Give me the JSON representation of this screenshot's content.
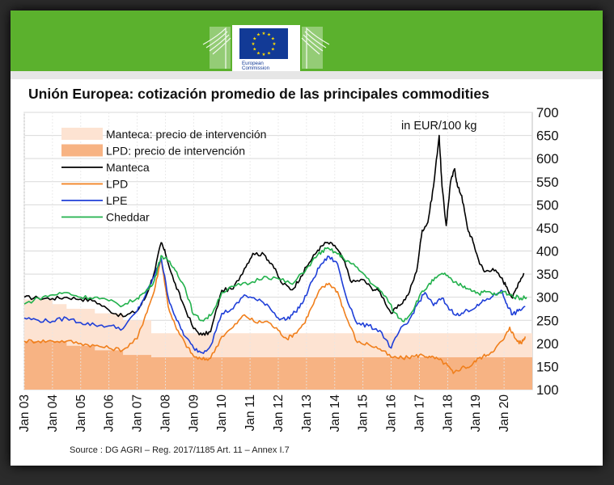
{
  "header": {
    "logo_text_line1": "European",
    "logo_text_line2": "Commission"
  },
  "title": "Unión Europea: cotización promedio de las principales commodities",
  "source": "Source : DG AGRI – Reg. 2017/1185 Art. 11 – Annex I.7",
  "colors": {
    "header_green": "#5bb12d",
    "eu_blue": "#123a96",
    "eu_star": "#ffdd00"
  },
  "chart_data": {
    "type": "line",
    "unit_label": "in EUR/100 kg",
    "ylim": [
      100,
      700
    ],
    "yticks": [
      100,
      150,
      200,
      250,
      300,
      350,
      400,
      450,
      500,
      550,
      600,
      650,
      700
    ],
    "xlim": [
      2003.0,
      2021.0
    ],
    "xticks": [
      {
        "label": "Jan 03",
        "x": 2003
      },
      {
        "label": "Jan 04",
        "x": 2004
      },
      {
        "label": "Jan 05",
        "x": 2005
      },
      {
        "label": "Jan 06",
        "x": 2006
      },
      {
        "label": "Jan 07",
        "x": 2007
      },
      {
        "label": "Jan 08",
        "x": 2008
      },
      {
        "label": "Jan 09",
        "x": 2009
      },
      {
        "label": "Jan 10",
        "x": 2010
      },
      {
        "label": "Jan 11",
        "x": 2011
      },
      {
        "label": "Jan 12",
        "x": 2012
      },
      {
        "label": "Jan 13",
        "x": 2013
      },
      {
        "label": "Jan 14",
        "x": 2014
      },
      {
        "label": "Jan 15",
        "x": 2015
      },
      {
        "label": "Jan 16",
        "x": 2016
      },
      {
        "label": "Jan 17",
        "x": 2017
      },
      {
        "label": "Jan 18",
        "x": 2018
      },
      {
        "label": "Jan 19",
        "x": 2019
      },
      {
        "label": "Jan 20",
        "x": 2020
      }
    ],
    "grid": true,
    "legend": [
      {
        "label": "Manteca: precio de intervención",
        "color": "#fde3d2",
        "kind": "area"
      },
      {
        "label": "LPD: precio de intervención",
        "color": "#f7b383",
        "kind": "area"
      },
      {
        "label": "Manteca",
        "color": "#000000",
        "kind": "line"
      },
      {
        "label": "LPD",
        "color": "#f07f1c",
        "kind": "line"
      },
      {
        "label": "LPE",
        "color": "#1f3fd8",
        "kind": "line"
      },
      {
        "label": "Cheddar",
        "color": "#22b14c",
        "kind": "line"
      }
    ],
    "areas": [
      {
        "name": "Manteca: precio de intervención",
        "color": "#fde3d2",
        "steps": [
          [
            2003.0,
            295
          ],
          [
            2004.0,
            285
          ],
          [
            2004.5,
            275
          ],
          [
            2005.5,
            265
          ],
          [
            2006.5,
            250
          ],
          [
            2007.5,
            222
          ],
          [
            2021.0,
            222
          ]
        ]
      },
      {
        "name": "LPD: precio de intervención",
        "color": "#f7b383",
        "steps": [
          [
            2003.0,
            205
          ],
          [
            2004.5,
            195
          ],
          [
            2005.5,
            185
          ],
          [
            2006.5,
            175
          ],
          [
            2007.5,
            170
          ],
          [
            2021.0,
            170
          ]
        ]
      }
    ],
    "series": [
      {
        "name": "Manteca",
        "color": "#000000",
        "x": [
          2003.0,
          2003.5,
          2004.0,
          2004.5,
          2005.0,
          2005.5,
          2006.0,
          2006.5,
          2007.0,
          2007.3,
          2007.6,
          2007.85,
          2008.0,
          2008.3,
          2008.6,
          2009.0,
          2009.3,
          2009.6,
          2010.0,
          2010.4,
          2010.8,
          2011.1,
          2011.5,
          2011.8,
          2012.1,
          2012.5,
          2012.8,
          2013.1,
          2013.4,
          2013.7,
          2014.0,
          2014.3,
          2014.6,
          2015.0,
          2015.3,
          2015.6,
          2016.0,
          2016.3,
          2016.6,
          2016.9,
          2017.1,
          2017.3,
          2017.5,
          2017.7,
          2017.8,
          2017.95,
          2018.1,
          2018.25,
          2018.35,
          2018.5,
          2018.7,
          2018.9,
          2019.1,
          2019.3,
          2019.6,
          2019.9,
          2020.1,
          2020.3,
          2020.5,
          2020.7
        ],
        "y": [
          300,
          298,
          297,
          300,
          296,
          292,
          272,
          258,
          270,
          300,
          352,
          418,
          395,
          335,
          290,
          232,
          218,
          225,
          315,
          318,
          362,
          395,
          392,
          370,
          332,
          316,
          345,
          375,
          402,
          418,
          412,
          382,
          332,
          338,
          320,
          312,
          265,
          282,
          305,
          356,
          445,
          462,
          540,
          650,
          540,
          455,
          548,
          578,
          540,
          520,
          450,
          420,
          380,
          355,
          362,
          342,
          322,
          298,
          330,
          352
        ]
      },
      {
        "name": "LPD",
        "color": "#f07f1c",
        "x": [
          2003.0,
          2003.5,
          2004.0,
          2004.5,
          2005.0,
          2005.5,
          2006.0,
          2006.5,
          2007.0,
          2007.3,
          2007.6,
          2007.85,
          2008.1,
          2008.4,
          2008.7,
          2009.0,
          2009.3,
          2009.6,
          2010.0,
          2010.4,
          2010.8,
          2011.2,
          2011.6,
          2012.0,
          2012.3,
          2012.6,
          2012.9,
          2013.2,
          2013.5,
          2013.8,
          2014.1,
          2014.4,
          2014.8,
          2015.2,
          2015.6,
          2016.0,
          2016.4,
          2016.8,
          2017.1,
          2017.4,
          2017.7,
          2018.0,
          2018.2,
          2018.5,
          2018.8,
          2019.1,
          2019.4,
          2019.7,
          2020.0,
          2020.2,
          2020.4,
          2020.6,
          2020.75
        ],
        "y": [
          205,
          205,
          205,
          205,
          200,
          195,
          190,
          186,
          210,
          262,
          312,
          385,
          280,
          230,
          200,
          172,
          165,
          168,
          215,
          235,
          262,
          245,
          248,
          228,
          210,
          222,
          242,
          280,
          318,
          330,
          312,
          258,
          202,
          198,
          188,
          170,
          168,
          172,
          175,
          170,
          165,
          152,
          135,
          148,
          150,
          168,
          175,
          190,
          210,
          235,
          210,
          200,
          215
        ]
      },
      {
        "name": "LPE",
        "color": "#1f3fd8",
        "x": [
          2003.0,
          2003.5,
          2004.0,
          2004.5,
          2005.0,
          2005.5,
          2006.0,
          2006.5,
          2007.0,
          2007.3,
          2007.6,
          2007.85,
          2008.1,
          2008.4,
          2008.7,
          2009.0,
          2009.3,
          2009.6,
          2010.0,
          2010.4,
          2010.8,
          2011.2,
          2011.6,
          2012.0,
          2012.3,
          2012.6,
          2012.9,
          2013.2,
          2013.5,
          2013.8,
          2014.1,
          2014.4,
          2014.8,
          2015.2,
          2015.6,
          2016.0,
          2016.3,
          2016.6,
          2016.9,
          2017.2,
          2017.5,
          2017.8,
          2018.1,
          2018.4,
          2018.7,
          2019.0,
          2019.3,
          2019.6,
          2019.9,
          2020.1,
          2020.3,
          2020.5,
          2020.75
        ],
        "y": [
          255,
          250,
          248,
          255,
          245,
          240,
          238,
          232,
          270,
          305,
          345,
          385,
          300,
          250,
          215,
          190,
          180,
          195,
          265,
          275,
          305,
          295,
          285,
          255,
          252,
          268,
          292,
          335,
          370,
          388,
          372,
          302,
          242,
          238,
          228,
          190,
          228,
          245,
          282,
          310,
          282,
          298,
          272,
          260,
          272,
          278,
          292,
          302,
          315,
          285,
          262,
          270,
          280
        ]
      },
      {
        "name": "Cheddar",
        "color": "#22b14c",
        "x": [
          2003.0,
          2003.5,
          2004.0,
          2004.5,
          2005.0,
          2005.5,
          2006.0,
          2006.5,
          2007.0,
          2007.3,
          2007.6,
          2007.85,
          2008.1,
          2008.4,
          2008.7,
          2009.0,
          2009.3,
          2009.6,
          2010.0,
          2010.5,
          2011.0,
          2011.5,
          2012.0,
          2012.5,
          2013.0,
          2013.4,
          2013.7,
          2014.0,
          2014.3,
          2014.6,
          2015.0,
          2015.4,
          2015.8,
          2016.1,
          2016.4,
          2016.7,
          2017.0,
          2017.3,
          2017.6,
          2017.9,
          2018.2,
          2018.5,
          2018.8,
          2019.1,
          2019.4,
          2019.7,
          2020.0,
          2020.3,
          2020.6,
          2020.8
        ],
        "y": [
          285,
          298,
          305,
          310,
          300,
          300,
          292,
          282,
          298,
          312,
          335,
          390,
          378,
          355,
          320,
          262,
          250,
          260,
          310,
          325,
          330,
          345,
          340,
          328,
          362,
          392,
          405,
          398,
          385,
          372,
          352,
          325,
          302,
          268,
          248,
          265,
          302,
          325,
          342,
          352,
          332,
          325,
          318,
          308,
          312,
          305,
          312,
          302,
          298,
          300
        ]
      }
    ]
  }
}
